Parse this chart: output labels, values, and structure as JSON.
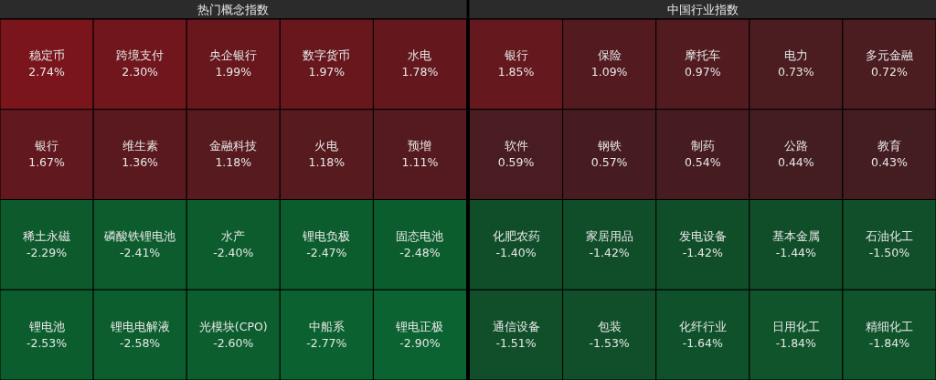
{
  "chart_data": [
    {
      "type": "other",
      "title": "热门概念指数",
      "categories": [
        "稳定币",
        "跨境支付",
        "央企银行",
        "数字货币",
        "水电",
        "银行",
        "维生素",
        "金融科技",
        "火电",
        "预增",
        "稀土永磁",
        "磷酸铁锂电池",
        "水产",
        "锂电负极",
        "固态电池",
        "锂电池",
        "锂电电解液",
        "光模块(CPO)",
        "中船系",
        "锂电正极"
      ],
      "values": [
        2.74,
        2.3,
        1.99,
        1.97,
        1.78,
        1.67,
        1.36,
        1.18,
        1.18,
        1.11,
        -2.29,
        -2.41,
        -2.4,
        -2.47,
        -2.48,
        -2.53,
        -2.58,
        -2.6,
        -2.77,
        -2.9
      ],
      "value_labels": [
        "2.74%",
        "2.30%",
        "1.99%",
        "1.97%",
        "1.78%",
        "1.67%",
        "1.36%",
        "1.18%",
        "1.18%",
        "1.11%",
        "-2.29%",
        "-2.41%",
        "-2.40%",
        "-2.47%",
        "-2.48%",
        "-2.53%",
        "-2.58%",
        "-2.60%",
        "-2.77%",
        "-2.90%"
      ]
    },
    {
      "type": "other",
      "title": "中国行业指数",
      "categories": [
        "银行",
        "保险",
        "摩托车",
        "电力",
        "多元金融",
        "软件",
        "钢铁",
        "制药",
        "公路",
        "教育",
        "化肥农药",
        "家居用品",
        "发电设备",
        "基本金属",
        "石油化工",
        "通信设备",
        "包装",
        "化纤行业",
        "日用化工",
        "精细化工"
      ],
      "values": [
        1.85,
        1.09,
        0.97,
        0.73,
        0.72,
        0.59,
        0.57,
        0.54,
        0.44,
        0.43,
        -1.4,
        -1.42,
        -1.42,
        -1.44,
        -1.5,
        -1.51,
        -1.53,
        -1.64,
        -1.84,
        -1.84
      ],
      "value_labels": [
        "1.85%",
        "1.09%",
        "0.97%",
        "0.73%",
        "0.72%",
        "0.59%",
        "0.57%",
        "0.54%",
        "0.44%",
        "0.43%",
        "-1.40%",
        "-1.42%",
        "-1.42%",
        "-1.44%",
        "-1.50%",
        "-1.51%",
        "-1.53%",
        "-1.64%",
        "-1.84%",
        "-1.84%"
      ]
    }
  ]
}
